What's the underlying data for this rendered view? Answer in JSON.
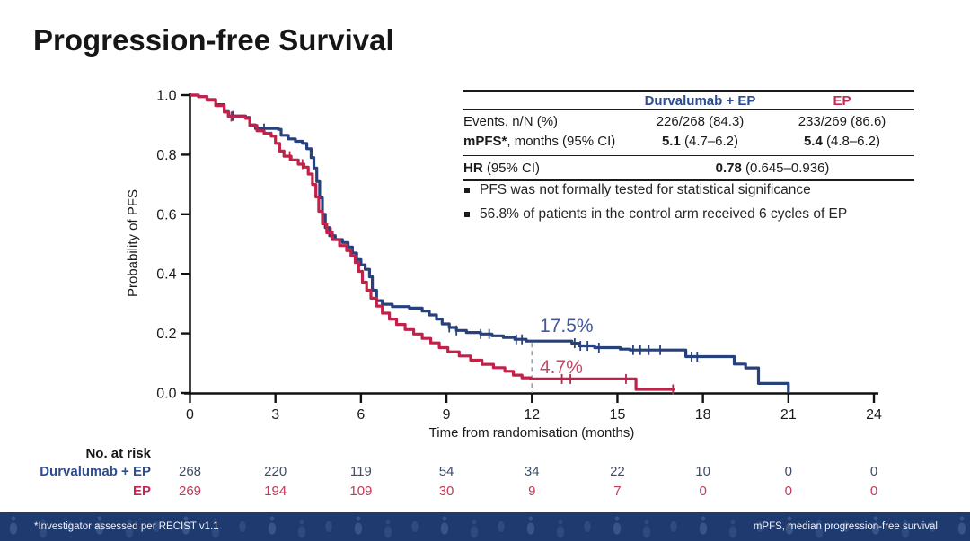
{
  "slide": {
    "title": "Progression-free Survival",
    "footer_left": "*Investigator assessed per RECIST v1.1",
    "footer_right": "mPFS, median progression-free survival"
  },
  "colors": {
    "durva_blue_curve": "#27417d",
    "durva_blue_text": "#2d4d93",
    "ep_red_curve": "#c22149",
    "ep_red_text": "#c32753",
    "annotation_blue": "#44569e",
    "annotation_red": "#c24a62",
    "risk_blue_values": "#404d66",
    "risk_red_values": "#c23a57",
    "reference_line_gray": "#9aa0a6",
    "footer_bg": "#1e3a6f"
  },
  "stats_table": {
    "col1_header": "Durvalumab + EP",
    "col2_header": "EP",
    "events": {
      "label": "Events, n/N (%)",
      "durva": "226/268 (84.3)",
      "ep": "233/269 (86.6)"
    },
    "mpfs": {
      "label_bold": "mPFS*",
      "label_rest": ", months (95% CI)",
      "durva_bold": "5.1",
      "durva_rest": " (4.7–6.2)",
      "ep_bold": "5.4",
      "ep_rest": " (4.8–6.2)"
    },
    "hr": {
      "label_bold": "HR",
      "label_rest": " (95% CI)",
      "value_bold": "0.78",
      "value_rest": " (0.645–0.936)"
    }
  },
  "bullets": [
    "PFS was not formally tested for statistical significance",
    "56.8% of patients in the control arm received 6 cycles of EP"
  ],
  "annotations": {
    "durva_rate": "17.5%",
    "ep_rate": "4.7%"
  },
  "chart_data": {
    "type": "line",
    "subtype": "kaplan-meier-step",
    "title": "Progression-free Survival",
    "xlabel": "Time from randomisation (months)",
    "ylabel": "Probability of PFS",
    "xlim": [
      0,
      24
    ],
    "ylim": [
      0.0,
      1.0
    ],
    "x_ticks": [
      0,
      3,
      6,
      9,
      12,
      15,
      18,
      21,
      24
    ],
    "y_ticks": [
      "0.0",
      "0.2",
      "0.4",
      "0.6",
      "0.8",
      "1.0"
    ],
    "grid": false,
    "legend_position": "none",
    "reference_line": {
      "x": 12,
      "y_top": 0.168,
      "y_bottom": 0,
      "style": "dashed",
      "color": "#9aa0a6"
    },
    "series": [
      {
        "name": "Durvalumab + EP",
        "color": "#27417d",
        "landmark": {
          "x": 12,
          "label": "17.5%",
          "value": 0.175
        },
        "points": [
          [
            0,
            1.0
          ],
          [
            0.3,
            0.995
          ],
          [
            0.6,
            0.985
          ],
          [
            0.9,
            0.968
          ],
          [
            1.2,
            0.945
          ],
          [
            1.35,
            0.93
          ],
          [
            1.95,
            0.925
          ],
          [
            2.1,
            0.9
          ],
          [
            2.3,
            0.888
          ],
          [
            3.1,
            0.885
          ],
          [
            3.2,
            0.865
          ],
          [
            3.45,
            0.853
          ],
          [
            3.7,
            0.845
          ],
          [
            3.95,
            0.838
          ],
          [
            4.1,
            0.82
          ],
          [
            4.25,
            0.79
          ],
          [
            4.35,
            0.755
          ],
          [
            4.45,
            0.71
          ],
          [
            4.55,
            0.655
          ],
          [
            4.65,
            0.6
          ],
          [
            4.75,
            0.555
          ],
          [
            4.9,
            0.528
          ],
          [
            5.1,
            0.515
          ],
          [
            5.35,
            0.505
          ],
          [
            5.55,
            0.49
          ],
          [
            5.7,
            0.47
          ],
          [
            5.85,
            0.448
          ],
          [
            6.0,
            0.43
          ],
          [
            6.15,
            0.415
          ],
          [
            6.3,
            0.39
          ],
          [
            6.4,
            0.345
          ],
          [
            6.55,
            0.31
          ],
          [
            6.75,
            0.298
          ],
          [
            7.1,
            0.29
          ],
          [
            7.7,
            0.285
          ],
          [
            8.15,
            0.275
          ],
          [
            8.4,
            0.262
          ],
          [
            8.65,
            0.248
          ],
          [
            8.85,
            0.232
          ],
          [
            9.1,
            0.22
          ],
          [
            9.35,
            0.21
          ],
          [
            9.7,
            0.203
          ],
          [
            10.2,
            0.198
          ],
          [
            10.6,
            0.192
          ],
          [
            11.0,
            0.186
          ],
          [
            11.4,
            0.18
          ],
          [
            11.8,
            0.174
          ],
          [
            13.4,
            0.167
          ],
          [
            13.65,
            0.158
          ],
          [
            14.2,
            0.152
          ],
          [
            15.1,
            0.147
          ],
          [
            15.45,
            0.144
          ],
          [
            17.4,
            0.122
          ],
          [
            19.1,
            0.097
          ],
          [
            19.5,
            0.084
          ],
          [
            19.95,
            0.032
          ],
          [
            21.0,
            0.0
          ]
        ],
        "censor_marks": [
          1.5,
          2.6,
          9.1,
          9.35,
          10.2,
          10.5,
          11.45,
          11.65,
          13.5,
          13.7,
          13.95,
          14.35,
          15.55,
          15.8,
          16.1,
          16.5,
          17.6,
          17.8
        ]
      },
      {
        "name": "EP",
        "color": "#c22149",
        "landmark": {
          "x": 12,
          "label": "4.7%",
          "value": 0.047
        },
        "points": [
          [
            0,
            1.0
          ],
          [
            0.3,
            0.995
          ],
          [
            0.6,
            0.983
          ],
          [
            0.9,
            0.965
          ],
          [
            1.2,
            0.943
          ],
          [
            1.35,
            0.928
          ],
          [
            1.95,
            0.922
          ],
          [
            2.1,
            0.898
          ],
          [
            2.35,
            0.88
          ],
          [
            2.6,
            0.872
          ],
          [
            2.85,
            0.862
          ],
          [
            3.0,
            0.838
          ],
          [
            3.15,
            0.812
          ],
          [
            3.3,
            0.795
          ],
          [
            3.55,
            0.782
          ],
          [
            3.8,
            0.768
          ],
          [
            4.0,
            0.758
          ],
          [
            4.15,
            0.735
          ],
          [
            4.3,
            0.7
          ],
          [
            4.42,
            0.658
          ],
          [
            4.52,
            0.61
          ],
          [
            4.65,
            0.568
          ],
          [
            4.8,
            0.538
          ],
          [
            5.0,
            0.515
          ],
          [
            5.25,
            0.495
          ],
          [
            5.5,
            0.478
          ],
          [
            5.65,
            0.46
          ],
          [
            5.8,
            0.438
          ],
          [
            5.92,
            0.408
          ],
          [
            6.05,
            0.372
          ],
          [
            6.2,
            0.345
          ],
          [
            6.35,
            0.318
          ],
          [
            6.55,
            0.292
          ],
          [
            6.75,
            0.268
          ],
          [
            7.0,
            0.248
          ],
          [
            7.25,
            0.23
          ],
          [
            7.55,
            0.213
          ],
          [
            7.85,
            0.198
          ],
          [
            8.15,
            0.183
          ],
          [
            8.45,
            0.168
          ],
          [
            8.75,
            0.152
          ],
          [
            9.05,
            0.138
          ],
          [
            9.45,
            0.124
          ],
          [
            9.85,
            0.11
          ],
          [
            10.25,
            0.096
          ],
          [
            10.65,
            0.085
          ],
          [
            11.05,
            0.073
          ],
          [
            11.35,
            0.06
          ],
          [
            11.65,
            0.051
          ],
          [
            11.95,
            0.047
          ],
          [
            15.65,
            0.012
          ],
          [
            17.0,
            0.012
          ]
        ],
        "censor_marks": [
          1.45,
          3.5,
          3.95,
          4.95,
          13.05,
          13.35,
          15.3,
          16.95
        ]
      }
    ]
  },
  "risk_table": {
    "title": "No. at risk",
    "time_points": [
      0,
      3,
      6,
      9,
      12,
      15,
      18,
      21,
      24
    ],
    "rows": [
      {
        "label": "Durvalumab + EP",
        "values": [
          "268",
          "220",
          "119",
          "54",
          "34",
          "22",
          "10",
          "0",
          "0"
        ]
      },
      {
        "label": "EP",
        "values": [
          "269",
          "194",
          "109",
          "30",
          "9",
          "7",
          "0",
          "0",
          "0"
        ]
      }
    ]
  }
}
